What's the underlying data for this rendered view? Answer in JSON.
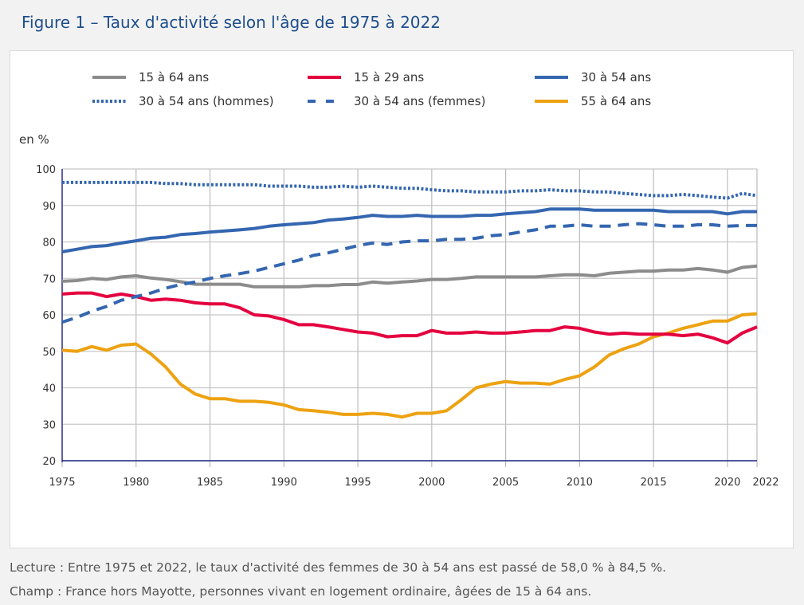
{
  "figure_title": "Figure 1 – Taux d'activité selon l'âge de 1975 à 2022",
  "notes": {
    "lecture": "Lecture : Entre 1975 et 2022, le taux d'activité des femmes de 30 à 54 ans est passé de 58,0 % à 84,5 %.",
    "champ": "Champ : France hors Mayotte, personnes vivant en logement ordinaire, âgées de 15 à 64 ans."
  },
  "chart_data": {
    "type": "line",
    "title": "Taux d'activité selon l'âge de 1975 à 2022",
    "xlabel": "",
    "ylabel": "en %",
    "ylim": [
      20,
      100
    ],
    "xlim": [
      1975,
      2022
    ],
    "yticks": [
      "20",
      "30",
      "40",
      "50",
      "60",
      "70",
      "80",
      "90",
      "100"
    ],
    "xticks": [
      "1975",
      "1980",
      "1985",
      "1990",
      "1995",
      "2000",
      "2005",
      "2010",
      "2015",
      "2020",
      "2022"
    ],
    "grid": true,
    "legend_position": "top",
    "x": [
      1975,
      1976,
      1977,
      1978,
      1979,
      1980,
      1981,
      1982,
      1983,
      1984,
      1985,
      1986,
      1987,
      1988,
      1989,
      1990,
      1991,
      1992,
      1993,
      1994,
      1995,
      1996,
      1997,
      1998,
      1999,
      2000,
      2001,
      2002,
      2003,
      2004,
      2005,
      2006,
      2007,
      2008,
      2009,
      2010,
      2011,
      2012,
      2013,
      2014,
      2015,
      2016,
      2017,
      2018,
      2019,
      2020,
      2021,
      2022
    ],
    "series": [
      {
        "name": "15 à 64 ans",
        "color": "#8c8c8c",
        "style": "solid",
        "values": [
          69.2,
          69.4,
          70.0,
          69.7,
          70.4,
          70.7,
          70.1,
          69.7,
          69.1,
          68.4,
          68.4,
          68.4,
          68.4,
          67.7,
          67.7,
          67.7,
          67.7,
          68.0,
          68.0,
          68.3,
          68.3,
          69.0,
          68.7,
          69.0,
          69.3,
          69.7,
          69.7,
          70.0,
          70.4,
          70.4,
          70.4,
          70.4,
          70.4,
          70.7,
          71.0,
          71.0,
          70.7,
          71.4,
          71.7,
          72.0,
          72.0,
          72.3,
          72.3,
          72.7,
          72.3,
          71.7,
          73.0,
          73.4
        ]
      },
      {
        "name": "15 à 29 ans",
        "color": "#e4003f",
        "style": "solid",
        "values": [
          65.7,
          66.0,
          66.0,
          65.0,
          65.7,
          65.0,
          64.0,
          64.3,
          64.0,
          63.3,
          63.0,
          63.0,
          62.0,
          60.0,
          59.7,
          58.7,
          57.3,
          57.3,
          56.7,
          56.0,
          55.3,
          55.0,
          54.0,
          54.3,
          54.3,
          55.7,
          55.0,
          55.0,
          55.3,
          55.0,
          55.0,
          55.3,
          55.7,
          55.7,
          56.7,
          56.3,
          55.3,
          54.7,
          55.0,
          54.7,
          54.7,
          54.7,
          54.3,
          54.7,
          53.7,
          52.3,
          55.0,
          56.7
        ]
      },
      {
        "name": "30 à 54 ans",
        "color": "#3466b0",
        "style": "solid",
        "values": [
          77.3,
          78.0,
          78.7,
          79.0,
          79.7,
          80.3,
          81.0,
          81.3,
          82.0,
          82.3,
          82.7,
          83.0,
          83.3,
          83.7,
          84.3,
          84.7,
          85.0,
          85.3,
          86.0,
          86.3,
          86.7,
          87.3,
          87.0,
          87.0,
          87.3,
          87.0,
          87.0,
          87.0,
          87.3,
          87.3,
          87.7,
          88.0,
          88.3,
          89.0,
          89.0,
          89.0,
          88.7,
          88.7,
          88.7,
          88.7,
          88.7,
          88.3,
          88.3,
          88.3,
          88.3,
          87.7,
          88.3,
          88.3
        ]
      },
      {
        "name": "30 à 54 ans (hommes)",
        "color": "#3466b0",
        "style": "dotted",
        "values": [
          96.3,
          96.3,
          96.3,
          96.3,
          96.3,
          96.3,
          96.3,
          96.0,
          96.0,
          95.7,
          95.7,
          95.7,
          95.7,
          95.7,
          95.3,
          95.3,
          95.3,
          95.0,
          95.0,
          95.3,
          95.0,
          95.3,
          95.0,
          94.7,
          94.7,
          94.3,
          94.0,
          94.0,
          93.7,
          93.7,
          93.7,
          94.0,
          94.0,
          94.3,
          94.0,
          94.0,
          93.7,
          93.7,
          93.3,
          93.0,
          92.7,
          92.7,
          93.0,
          92.7,
          92.3,
          92.0,
          93.3,
          92.7
        ]
      },
      {
        "name": "30 à 54 ans (femmes)",
        "color": "#3466b0",
        "style": "dashed",
        "values": [
          58.0,
          59.3,
          61.0,
          62.3,
          64.0,
          65.0,
          66.0,
          67.3,
          68.3,
          69.0,
          70.0,
          70.7,
          71.3,
          72.0,
          73.0,
          74.0,
          75.0,
          76.3,
          77.0,
          78.0,
          79.0,
          79.7,
          79.3,
          80.0,
          80.3,
          80.3,
          80.7,
          80.7,
          81.0,
          81.7,
          82.0,
          82.7,
          83.3,
          84.3,
          84.3,
          84.7,
          84.3,
          84.3,
          84.7,
          85.0,
          84.7,
          84.3,
          84.3,
          84.7,
          84.7,
          84.3,
          84.5,
          84.5
        ]
      },
      {
        "name": "55 à 64 ans",
        "color": "#eda211",
        "style": "solid",
        "values": [
          50.3,
          50.0,
          51.3,
          50.3,
          51.7,
          52.0,
          49.3,
          45.7,
          41.0,
          38.3,
          37.0,
          37.0,
          36.3,
          36.3,
          36.0,
          35.3,
          34.0,
          33.7,
          33.3,
          32.7,
          32.7,
          33.0,
          32.7,
          32.0,
          33.0,
          33.0,
          33.7,
          36.7,
          40.0,
          41.0,
          41.7,
          41.3,
          41.3,
          41.0,
          42.3,
          43.3,
          45.7,
          49.0,
          50.7,
          52.0,
          54.0,
          55.0,
          56.3,
          57.3,
          58.3,
          58.3,
          60.0,
          60.3
        ]
      }
    ],
    "legend_layout": [
      [
        "15 à 64 ans",
        "15 à 29 ans",
        "30 à 54 ans"
      ],
      [
        "30 à 54 ans (hommes)",
        "30 à 54 ans (femmes)",
        "55 à 64 ans"
      ]
    ]
  }
}
